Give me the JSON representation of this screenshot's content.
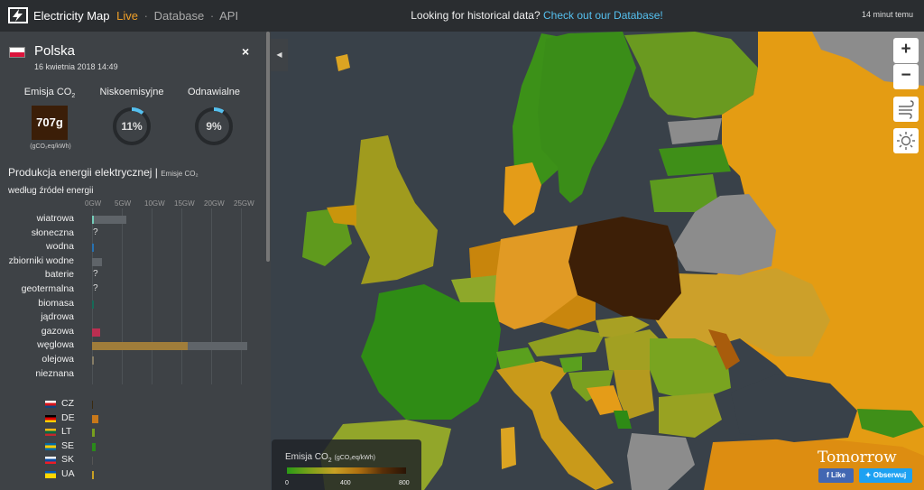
{
  "header": {
    "brand": "Electricity Map",
    "live": "Live",
    "sep1": "·",
    "nav_database": "Database",
    "sep2": "·",
    "nav_api": "API",
    "notice": "Looking for historical data?",
    "notice_link": "Check out our Database!",
    "updated": "14 minut temu"
  },
  "panel": {
    "country": "Polska",
    "datetime": "16 kwietnia 2018 14:49",
    "close_icon": "×",
    "metrics": {
      "co2_label": "Emisja CO",
      "co2_sub": "2",
      "co2_value": "707g",
      "co2_unit": "(gCO₂eq/kWh)",
      "lowcarbon_label": "Niskoemisyjne",
      "lowcarbon_value": "11%",
      "lowcarbon_fraction": 0.11,
      "renewable_label": "Odnawialne",
      "renewable_value": "9%",
      "renewable_fraction": 0.09
    },
    "section_title": "Produkcja energii elektrycznej |",
    "section_toggle": "Emisje CO₂",
    "section_sub": "według źródeł energii",
    "axis_ticks": [
      "0GW",
      "5GW",
      "10GW",
      "15GW",
      "20GW",
      "25GW"
    ],
    "axis_max_gw": 25,
    "sources": [
      {
        "label": "wiatrowa",
        "value_gw": 0.2,
        "capacity_gw": 5.8,
        "color": "#74cdb9",
        "unknown": false
      },
      {
        "label": "słoneczna",
        "value_gw": null,
        "capacity_gw": null,
        "color": "#f2d024",
        "unknown": true
      },
      {
        "label": "wodna",
        "value_gw": 0.3,
        "capacity_gw": 0.3,
        "color": "#2772b2",
        "unknown": false
      },
      {
        "label": "zbiorniki wodne",
        "value_gw": 0.0,
        "capacity_gw": 1.7,
        "color": "#0b2e6b",
        "unknown": false
      },
      {
        "label": "baterie",
        "value_gw": null,
        "capacity_gw": null,
        "color": "#b7b7b7",
        "unknown": true
      },
      {
        "label": "geotermalna",
        "value_gw": null,
        "capacity_gw": null,
        "color": "#f7dbb0",
        "unknown": true
      },
      {
        "label": "biomasa",
        "value_gw": 0.2,
        "capacity_gw": null,
        "color": "#166a57",
        "unknown": false
      },
      {
        "label": "jądrowa",
        "value_gw": 0,
        "capacity_gw": null,
        "color": "#aedd46",
        "unknown": false
      },
      {
        "label": "gazowa",
        "value_gw": 1.3,
        "capacity_gw": null,
        "color": "#bb2f51",
        "unknown": false
      },
      {
        "label": "węglowa",
        "value_gw": 16.0,
        "capacity_gw": 26.0,
        "color": "#a07d3a",
        "unknown": false
      },
      {
        "label": "olejowa",
        "value_gw": 0.1,
        "capacity_gw": null,
        "color": "#867d66",
        "unknown": false
      },
      {
        "label": "nieznana",
        "value_gw": 0,
        "capacity_gw": null,
        "color": "#acacac",
        "unknown": false
      }
    ],
    "exchanges": [
      {
        "code": "CZ",
        "value_gw": -0.2,
        "color": "#3a2a10",
        "flag": [
          "#ffffff",
          "#d7141a",
          "#11457e"
        ]
      },
      {
        "code": "DE",
        "value_gw": 1.0,
        "color": "#c8781a",
        "flag": [
          "#000000",
          "#dd0000",
          "#ffce00"
        ]
      },
      {
        "code": "LT",
        "value_gw": 0.4,
        "color": "#78a01e",
        "flag": [
          "#fdb913",
          "#006a44",
          "#c1272d"
        ]
      },
      {
        "code": "SE",
        "value_gw": 0.6,
        "color": "#2a8a1a",
        "flag": [
          "#006aa7",
          "#fecc00",
          "#006aa7"
        ]
      },
      {
        "code": "SK",
        "value_gw": -0.2,
        "color": "#555555",
        "flag": [
          "#ffffff",
          "#0b4ea2",
          "#ee1c25"
        ]
      },
      {
        "code": "UA",
        "value_gw": 0.1,
        "color": "#c8a024",
        "flag": [
          "#0057b7",
          "#ffd700",
          "#ffd700"
        ]
      }
    ]
  },
  "map": {
    "zoom_in": "+",
    "zoom_out": "−",
    "wind_icon": "wind-icon",
    "sun_icon": "sun-icon",
    "collapse_icon": "◀",
    "legend": {
      "title": "Emisja CO",
      "title_sub": "2",
      "unit": "(gCO₂eq/kWh)",
      "ticks": [
        "0",
        "400",
        "800"
      ]
    },
    "brand_tomorrow": "Tomorrow",
    "fb_like": "Like",
    "tw_follow": "Obserwuj"
  },
  "colors": {
    "poland": "#3d1f07",
    "accent_live": "#f0a028",
    "link": "#55c0ef",
    "gauge": "#55c0ef"
  }
}
